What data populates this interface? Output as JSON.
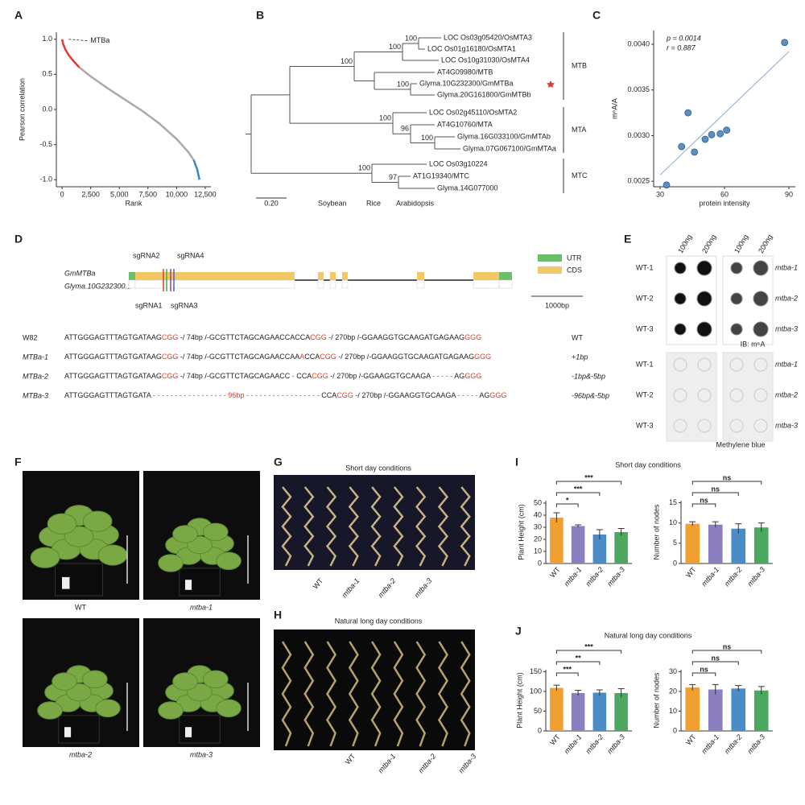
{
  "panel_labels": [
    "A",
    "B",
    "C",
    "D",
    "E",
    "F",
    "G",
    "H",
    "I",
    "J"
  ],
  "chart_data": [
    {
      "type": "line",
      "xlabel": "Rank",
      "ylabel": "Pearson correlation",
      "annotation": "MTBa",
      "x": [
        0,
        100,
        300,
        600,
        1000,
        1500,
        2500,
        4000,
        5500,
        7000,
        8500,
        10000,
        11000,
        11500,
        11800,
        12000
      ],
      "series": [
        {
          "color": "#e03b2f",
          "values": [
            1.0,
            0.93,
            0.85,
            0.77,
            0.69,
            0.6,
            null,
            null,
            null,
            null,
            null,
            null,
            null,
            null,
            null,
            null
          ]
        },
        {
          "color": "#a9a9a9",
          "values": [
            null,
            null,
            null,
            null,
            null,
            0.6,
            0.47,
            0.3,
            0.14,
            -0.02,
            -0.2,
            -0.42,
            -0.6,
            -0.72,
            null,
            null
          ]
        },
        {
          "color": "#3a86c8",
          "values": [
            null,
            null,
            null,
            null,
            null,
            null,
            null,
            null,
            null,
            null,
            null,
            null,
            null,
            -0.72,
            -0.85,
            -1.0
          ]
        }
      ],
      "xlim": [
        -500,
        13000
      ],
      "ylim": [
        -1.1,
        1.1
      ],
      "xticks": [
        0,
        {
          "value": 2500,
          "label": "2,500"
        },
        {
          "value": 5000,
          "label": "5,000"
        },
        {
          "value": 7500,
          "label": "7,500"
        },
        {
          "value": 10000,
          "label": "10,000"
        },
        {
          "value": 12500,
          "label": "12,500"
        }
      ],
      "yticks": [
        {
          "value": -1,
          "label": "-1.0"
        },
        -0.5,
        {
          "value": 0,
          "label": "0.0"
        },
        0.5,
        {
          "value": 1,
          "label": "1.0"
        }
      ]
    },
    {
      "type": "scatter",
      "xlabel": "protein intensity",
      "ylabel": "m⁶A/A",
      "annotations": [
        "p = 0.0014",
        "r = 0.887"
      ],
      "x": [
        33,
        40,
        43,
        46,
        51,
        54,
        58,
        61,
        88
      ],
      "values": [
        0.00246,
        0.00288,
        0.00325,
        0.00282,
        0.00296,
        0.00301,
        0.00302,
        0.00306,
        0.00402
      ],
      "color": "#5b8fc0",
      "fit": {
        "color": "#9bb5da",
        "x": [
          30,
          90
        ],
        "values": [
          0.00257,
          0.00392
        ]
      },
      "xlim": [
        27,
        93
      ],
      "ylim": [
        0.00244,
        0.00415
      ],
      "xticks": [
        30,
        60,
        90
      ],
      "yticks": [
        0.0025,
        {
          "value": 0.003,
          "label": "0.0030"
        },
        0.0035,
        {
          "value": 0.004,
          "label": "0.0040"
        }
      ]
    },
    {
      "type": "bar",
      "title": "Short day conditions",
      "ylabel": "Plant Height (cm)",
      "categories": [
        "WT",
        "mtba-1",
        "mtba-2",
        "mtba-3"
      ],
      "values": [
        38,
        31,
        24,
        26
      ],
      "errors": [
        4,
        1,
        4,
        3
      ],
      "colors": [
        "#f0a030",
        "#8b7fc0",
        "#4a8cc8",
        "#4ca860"
      ],
      "annotations": [
        "*",
        "***",
        "***"
      ],
      "ylim": [
        0,
        52
      ],
      "yticks": [
        0,
        10,
        20,
        30,
        40,
        50
      ]
    },
    {
      "type": "bar",
      "ylabel": "Number of nodes",
      "categories": [
        "WT",
        "mtba-1",
        "mtba-2",
        "mtba-3"
      ],
      "values": [
        9.8,
        9.6,
        8.6,
        8.9
      ],
      "errors": [
        0.5,
        0.7,
        1.2,
        1.1
      ],
      "colors": [
        "#f0a030",
        "#8b7fc0",
        "#4a8cc8",
        "#4ca860"
      ],
      "annotations": [
        "ns",
        "ns",
        "ns"
      ],
      "ylim": [
        0,
        15.5
      ],
      "yticks": [
        0,
        5,
        10,
        15
      ]
    },
    {
      "type": "bar",
      "title": "Natural long day conditions",
      "ylabel": "Plant Height (cm)",
      "categories": [
        "WT",
        "mtba-1",
        "mtba-2",
        "mtba-3"
      ],
      "values": [
        109,
        96,
        97,
        96
      ],
      "errors": [
        7,
        7,
        7,
        11
      ],
      "colors": [
        "#f0a030",
        "#8b7fc0",
        "#4a8cc8",
        "#4ca860"
      ],
      "annotations": [
        "***",
        "**",
        "***"
      ],
      "ylim": [
        0,
        155
      ],
      "yticks": [
        0,
        50,
        100,
        150
      ]
    },
    {
      "type": "bar",
      "ylabel": "Number of nodes",
      "categories": [
        "WT",
        "mtba-1",
        "mtba-2",
        "mtba-3"
      ],
      "values": [
        22,
        21,
        21.5,
        20.5
      ],
      "errors": [
        1.5,
        2.5,
        1.5,
        2
      ],
      "colors": [
        "#f0a030",
        "#8b7fc0",
        "#4a8cc8",
        "#4ca860"
      ],
      "annotations": [
        "ns",
        "ns",
        "ns"
      ],
      "ylim": [
        0,
        31
      ],
      "yticks": [
        0,
        10,
        20,
        30
      ]
    }
  ],
  "tree": {
    "leaves": [
      {
        "label": "LOC Os03g05420/OsMTA3",
        "color": "#7a6fc0"
      },
      {
        "label": "LOC Os01g16180/OsMTA1",
        "color": "#7a6fc0"
      },
      {
        "label": "LOC Os10g31030/OsMTA4",
        "color": "#7a6fc0"
      },
      {
        "label": "AT4G09980/MTB",
        "color": "#5aab4a"
      },
      {
        "label": "Glyma.10G232300/GmMTBa",
        "color": "#4aa3df"
      },
      {
        "label": "Glyma.20G161800/GmMTBb",
        "color": "#4aa3df"
      },
      {
        "label": "LOC Os02g45110/OsMTA2",
        "color": "#7a6fc0"
      },
      {
        "label": "AT4G10760/MTA",
        "color": "#5aab4a"
      },
      {
        "label": "Glyma.16G033100/GmMTAb",
        "color": "#4aa3df"
      },
      {
        "label": "Glyma.07G067100/GmMTAa",
        "color": "#4aa3df"
      },
      {
        "label": "LOC Os03g10224",
        "color": "#7a6fc0"
      },
      {
        "label": "AT1G19340/MTC",
        "color": "#5aab4a"
      },
      {
        "label": "Glyma.14G077000",
        "color": "#4aa3df"
      }
    ],
    "bootstraps": [
      100,
      100,
      100,
      100,
      100,
      96,
      100,
      100,
      97
    ],
    "clades": [
      "MTB",
      "MTA",
      "MTC"
    ],
    "scale_label": "0.20",
    "legend": [
      {
        "label": "Soybean",
        "color": "#4aa3df"
      },
      {
        "label": "Rice",
        "color": "#7a6fc0"
      },
      {
        "label": "Arabidopsis",
        "color": "#5aab4a"
      }
    ]
  },
  "gene": {
    "name": "GmMTBa",
    "transcript": "Glyma.10G232300.1",
    "sgrnas": [
      {
        "label": "sgRNA1",
        "color": "#e03b2f"
      },
      {
        "label": "sgRNA2",
        "color": "#3fae49"
      },
      {
        "label": "sgRNA3",
        "color": "#4a5fc0"
      },
      {
        "label": "sgRNA4",
        "color": "#9b3a8e"
      }
    ],
    "legend": [
      "UTR",
      "CDS"
    ],
    "scale_label": "1000bp",
    "rows": [
      {
        "name": "W82",
        "parts": [
          {
            "text": "ATTGGGAGTTTAGTGATAAG"
          },
          {
            "text": "CGG",
            "red": true
          },
          {
            "text": " -/ 74bp /-GCGTTCTAGCAGAACCACCA"
          },
          {
            "text": "CGG",
            "red": true
          },
          {
            "text": " -/ 270bp /-GGAAGGTGCAAGATGAGAAG"
          },
          {
            "text": "GGG",
            "red": true
          }
        ],
        "result": "WT"
      },
      {
        "name": "MTBa-1",
        "parts": [
          {
            "text": "ATTGGGAGTTTAGTGATAAG"
          },
          {
            "text": "CGG",
            "red": true
          },
          {
            "text": " -/ 74bp /-GCGTTCTAGCAGAACCAA"
          },
          {
            "text": "A",
            "red": true
          },
          {
            "text": "CCA"
          },
          {
            "text": "CGG",
            "red": true
          },
          {
            "text": " -/ 270bp /-GGAAGGTGCAAGATGAGAAG"
          },
          {
            "text": "GGG",
            "red": true
          }
        ],
        "result": "+1bp"
      },
      {
        "name": "MTBa-2",
        "parts": [
          {
            "text": "ATTGGGAGTTTAGTGATAAG"
          },
          {
            "text": "CGG",
            "red": true
          },
          {
            "text": " -/ 74bp /-GCGTTCTAGCAGAACC"
          },
          {
            "text": " - ",
            "red": true
          },
          {
            "text": "CCA"
          },
          {
            "text": "CGG",
            "red": true
          },
          {
            "text": " -/ 270bp /-GGAAGGTGCAAGA"
          },
          {
            "text": " - - - - - ",
            "red": true
          },
          {
            "text": "AG"
          },
          {
            "text": "GGG",
            "red": true
          }
        ],
        "result": "-1bp&-5bp"
      },
      {
        "name": "MTBa-3",
        "parts": [
          {
            "text": "ATTGGGAGTTTAGTGATA"
          },
          {
            "text": " - - - - - - - - - - - - - - - - - 96bp - - - - - - - - - - - - - - - - - ",
            "red": true
          },
          {
            "text": "CCA"
          },
          {
            "text": "CGG",
            "red": true
          },
          {
            "text": " -/ 270bp /-GGAAGGTGCAAGA"
          },
          {
            "text": " - - - - - ",
            "red": true
          },
          {
            "text": "AG"
          },
          {
            "text": "GGG",
            "red": true
          }
        ],
        "result": "-96bp&-5bp"
      }
    ]
  },
  "blot": {
    "columns": [
      "100ng",
      "200ng",
      "100ng",
      "200ng"
    ],
    "top": {
      "left": [
        "WT-1",
        "WT-2",
        "WT-3"
      ],
      "right": [
        "mtba-1",
        "mtba-2",
        "mtba-3"
      ],
      "caption": "IB: m⁶A"
    },
    "bottom": {
      "left": [
        "WT-1",
        "WT-2",
        "WT-3"
      ],
      "right": [
        "mtba-1",
        "mtba-2",
        "mtba-3"
      ],
      "caption": "Methylene blue"
    }
  },
  "photos_f": {
    "labels": [
      "WT",
      "mtba-1",
      "mtba-2",
      "mtba-3"
    ]
  },
  "photo_g": {
    "title": "Short day conditions",
    "labels": [
      "WT",
      "mtba-1",
      "mtba-2",
      "mtba-3"
    ]
  },
  "photo_h": {
    "title": "Natural long day conditions",
    "labels": [
      "WT",
      "mtba-1",
      "mtba-2",
      "mtba-3"
    ]
  }
}
